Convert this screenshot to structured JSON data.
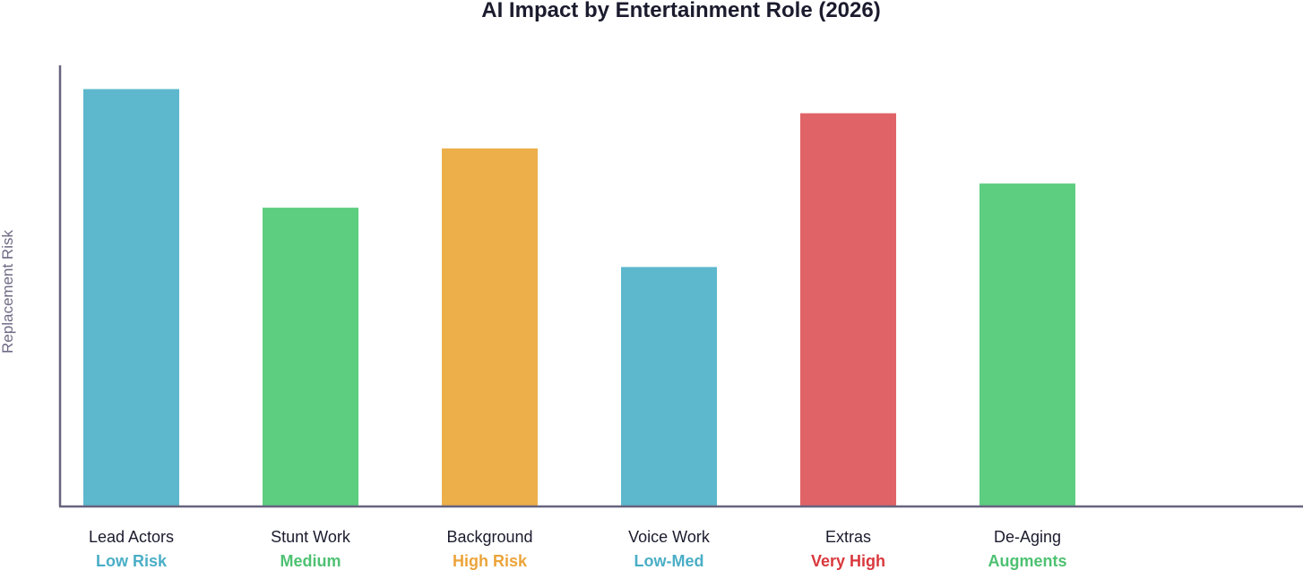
{
  "chart_data": {
    "type": "bar",
    "title": "AI Impact by Entertainment Role (2026)",
    "xlabel": "",
    "ylabel": "Replacement Risk",
    "ylim": [
      0,
      100
    ],
    "grid": false,
    "categories": [
      "Lead Actors",
      "Stunt Work",
      "Background",
      "Voice Work",
      "Extras",
      "De-Aging"
    ],
    "values": [
      95,
      68,
      81.5,
      54.5,
      89.5,
      73.5
    ],
    "risk_labels": [
      "Low Risk",
      "Medium",
      "High Risk",
      "Low-Med",
      "Very High",
      "Augments"
    ],
    "colors": [
      "#5db8cd",
      "#5dcd80",
      "#edaf4a",
      "#5db8cd",
      "#e06467",
      "#5dcd80"
    ],
    "label_colors": [
      "#4aaec6",
      "#4ec172",
      "#eca43a",
      "#4aaec6",
      "#d9383d",
      "#4ec172"
    ]
  }
}
